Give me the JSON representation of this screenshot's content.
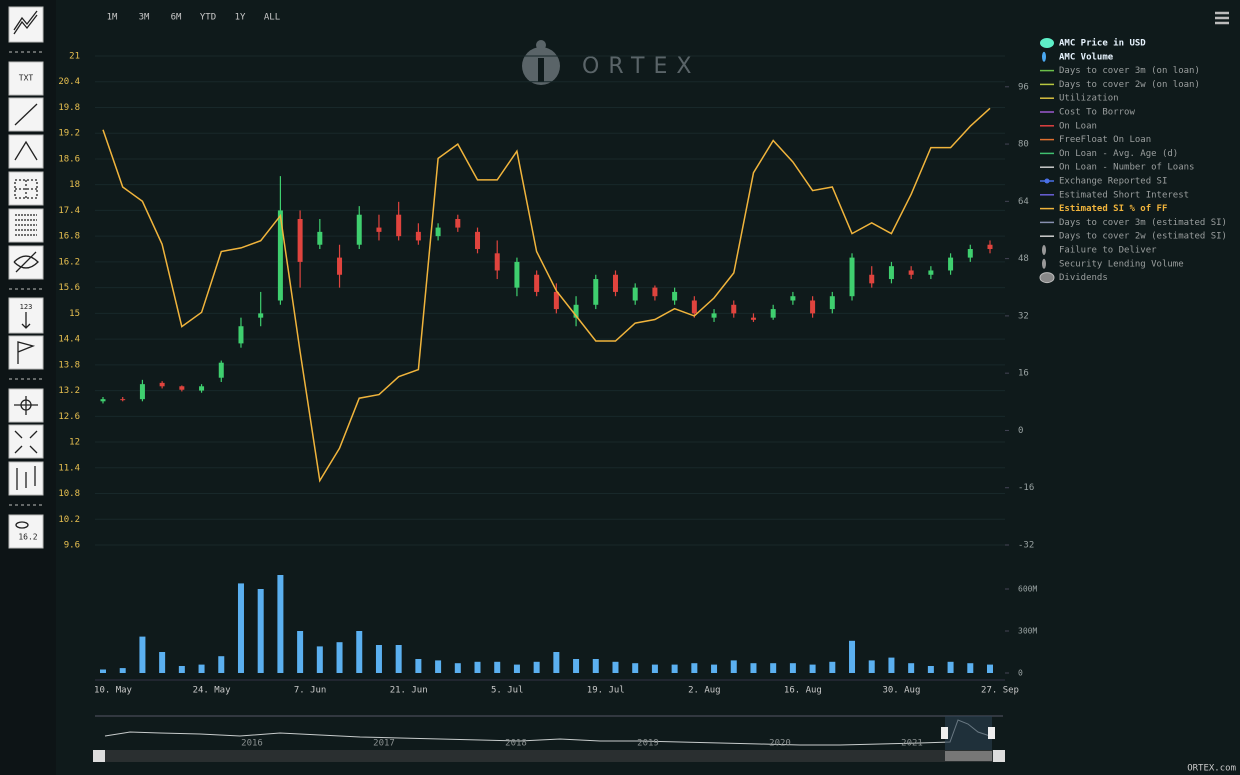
{
  "toolbar": {
    "ranges": [
      "1M",
      "3M",
      "6M",
      "YTD",
      "1Y",
      "ALL"
    ],
    "tools": [
      "TXT",
      "123",
      "16.2"
    ]
  },
  "logo": "ORTEX",
  "chart_data": [
    {
      "type": "candlestick",
      "series": [
        {
          "color_up": "#3fcf6f",
          "color_down": "#e0443e",
          "open": [
            12.95,
            13.0,
            13.0,
            13.38,
            13.3,
            13.2,
            13.5,
            14.3,
            14.9,
            15.3,
            17.2,
            16.6,
            16.3,
            16.6,
            17.0,
            17.3,
            16.9,
            16.8,
            17.2,
            16.9,
            16.4,
            15.6,
            15.9,
            15.5,
            14.9,
            15.2,
            15.9,
            15.3,
            15.6,
            15.3,
            15.3,
            14.9,
            15.2,
            14.9,
            14.9,
            15.3,
            15.3,
            15.1,
            15.4,
            15.9,
            15.8,
            16.0,
            15.9,
            16.0,
            16.3,
            16.6
          ],
          "high": [
            13.05,
            13.05,
            13.45,
            13.42,
            13.32,
            13.35,
            13.9,
            14.9,
            15.5,
            18.2,
            17.4,
            17.2,
            16.6,
            17.5,
            17.3,
            17.6,
            17.1,
            17.1,
            17.3,
            17.0,
            16.7,
            16.3,
            16.0,
            15.7,
            15.4,
            15.9,
            16.0,
            15.7,
            15.65,
            15.6,
            15.4,
            15.1,
            15.3,
            15.0,
            15.2,
            15.5,
            15.4,
            15.5,
            16.4,
            16.1,
            16.2,
            16.1,
            16.1,
            16.4,
            16.6,
            16.7
          ],
          "low": [
            12.9,
            12.95,
            12.95,
            13.25,
            13.18,
            13.15,
            13.4,
            14.2,
            14.7,
            15.2,
            15.6,
            16.5,
            15.6,
            16.5,
            16.7,
            16.7,
            16.6,
            16.7,
            16.9,
            16.4,
            15.8,
            15.4,
            15.4,
            15.0,
            14.7,
            15.1,
            15.4,
            15.2,
            15.3,
            15.2,
            14.9,
            14.8,
            14.9,
            14.8,
            14.85,
            15.2,
            14.9,
            15.0,
            15.3,
            15.6,
            15.7,
            15.8,
            15.8,
            15.9,
            16.2,
            16.4
          ],
          "close": [
            13.0,
            12.98,
            13.35,
            13.3,
            13.22,
            13.3,
            13.85,
            14.7,
            15.0,
            17.4,
            16.2,
            16.9,
            15.9,
            17.3,
            16.9,
            16.8,
            16.7,
            17.0,
            17.0,
            16.5,
            16.0,
            16.2,
            15.5,
            15.1,
            15.2,
            15.8,
            15.5,
            15.6,
            15.4,
            15.5,
            15.0,
            15.0,
            15.0,
            14.85,
            15.1,
            15.4,
            15.0,
            15.4,
            16.3,
            15.7,
            16.1,
            15.9,
            16.0,
            16.3,
            16.5,
            16.5
          ]
        },
        {
          "color": "#f0b43c",
          "axis": "y2",
          "values": [
            84,
            68,
            64,
            52,
            29,
            33,
            50,
            51,
            53,
            60,
            22,
            -14,
            -5,
            9,
            10,
            15,
            17,
            76,
            80,
            70,
            70,
            78,
            50,
            39,
            32,
            25,
            25,
            30,
            31,
            34,
            32,
            37,
            44,
            72,
            81,
            75,
            67,
            68,
            55,
            58,
            55,
            66,
            79,
            79,
            85,
            90
          ]
        }
      ],
      "ylim": [
        9.6,
        21
      ],
      "yticks": [
        9.6,
        10.2,
        10.8,
        11.4,
        12,
        12.6,
        13.2,
        13.8,
        14.4,
        15,
        15.6,
        16.2,
        16.8,
        17.4,
        18,
        18.6,
        19.2,
        19.8,
        20.4,
        21
      ],
      "y2lim": [
        -32,
        104.6
      ],
      "y2ticks": [
        -32,
        -16,
        0,
        16,
        32,
        48,
        64,
        80,
        96
      ],
      "grid": true,
      "legend": [
        {
          "name": "AMC Price in USD",
          "color": "#5ef0c8",
          "marker": "blob",
          "active": true
        },
        {
          "name": "AMC Volume",
          "color": "#4aa8f0",
          "marker": "drop",
          "active": true
        },
        {
          "name": "Days to cover 3m (on loan)",
          "color": "#6cc04a",
          "marker": "line"
        },
        {
          "name": "Days to cover 2w (on loan)",
          "color": "#b8c840",
          "marker": "line"
        },
        {
          "name": "Utilization",
          "color": "#d8c040",
          "marker": "line"
        },
        {
          "name": "Cost To Borrow",
          "color": "#9b59d0",
          "marker": "line"
        },
        {
          "name": "On Loan",
          "color": "#e04040",
          "marker": "line"
        },
        {
          "name": "FreeFloat On Loan",
          "color": "#e07030",
          "marker": "line"
        },
        {
          "name": "On Loan - Avg. Age (d)",
          "color": "#40c070",
          "marker": "line"
        },
        {
          "name": "On Loan - Number of Loans",
          "color": "#cccccc",
          "marker": "line"
        },
        {
          "name": "Exchange Reported SI",
          "color": "#4a70e8",
          "marker": "star"
        },
        {
          "name": "Estimated Short Interest",
          "color": "#6a60d8",
          "marker": "line"
        },
        {
          "name": "Estimated SI % of FF",
          "color": "#f0b43c",
          "marker": "line",
          "active": true
        },
        {
          "name": "Days to cover 3m (estimated SI)",
          "color": "#8890b0",
          "marker": "line"
        },
        {
          "name": "Days to cover 2w (estimated SI)",
          "color": "#d0d0d0",
          "marker": "line"
        },
        {
          "name": "Failure to Deliver",
          "color": "#999999",
          "marker": "drop"
        },
        {
          "name": "Security Lending Volume",
          "color": "#999999",
          "marker": "drop"
        },
        {
          "name": "Dividends",
          "color": "#888888",
          "marker": "circle"
        }
      ]
    },
    {
      "type": "bar",
      "categories": [
        "10. May",
        null,
        null,
        null,
        null,
        "24. May",
        null,
        null,
        null,
        null,
        "7. Jun",
        null,
        null,
        null,
        null,
        "21. Jun",
        null,
        null,
        null,
        null,
        "5. Jul",
        null,
        null,
        null,
        null,
        "19. Jul",
        null,
        null,
        null,
        null,
        "2. Aug",
        null,
        null,
        null,
        null,
        "16. Aug",
        null,
        null,
        null,
        null,
        "30. Aug",
        null,
        null,
        null,
        null,
        "27. Sep"
      ],
      "series": [
        {
          "color": "#5bb0f0",
          "values": [
            25000000,
            35000000,
            260000000,
            150000000,
            50000000,
            60000000,
            120000000,
            640000000,
            600000000,
            700000000,
            300000000,
            190000000,
            220000000,
            300000000,
            200000000,
            200000000,
            100000000,
            90000000,
            70000000,
            80000000,
            80000000,
            60000000,
            80000000,
            150000000,
            100000000,
            100000000,
            80000000,
            70000000,
            60000000,
            60000000,
            70000000,
            60000000,
            90000000,
            70000000,
            70000000,
            70000000,
            60000000,
            80000000,
            230000000,
            90000000,
            110000000,
            70000000,
            50000000,
            80000000,
            70000000,
            60000000
          ]
        }
      ],
      "ylim": [
        0,
        750000000
      ],
      "yticks": [
        0,
        {
          "value": 300000000,
          "label": "300M"
        },
        {
          "value": 600000000,
          "label": "600M"
        }
      ]
    }
  ],
  "navigator": {
    "years": [
      "2016",
      "2017",
      "2018",
      "2019",
      "2020",
      "2021"
    ]
  },
  "footer": "ORTEX.com"
}
